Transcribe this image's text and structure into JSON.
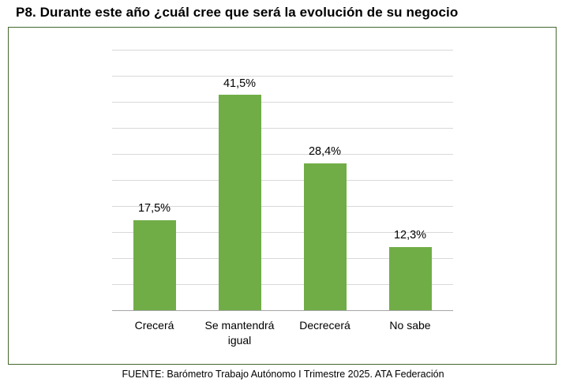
{
  "title": "P8. Durante este año ¿cuál cree que será la evolución de su negocio",
  "source": "FUENTE: Barómetro Trabajo Autónomo I Trimestre 2025. ATA Federación",
  "colors": {
    "bar": "#70AD47",
    "box_border": "#44682d",
    "gridline": "#d9d9d9",
    "axis_line": "#a6a6a6"
  },
  "chart_data": {
    "type": "bar",
    "title": "P8. Durante este año ¿cuál cree que será la evolución de su negocio",
    "categories": [
      "Crecerá",
      "Se mantendrá igual",
      "Decrecerá",
      "No sabe"
    ],
    "values": [
      17.5,
      41.5,
      28.4,
      12.3
    ],
    "value_labels": [
      "17,5%",
      "41,5%",
      "28,4%",
      "12,3%"
    ],
    "xlabel": "",
    "ylabel": "",
    "ylim": [
      0,
      50
    ],
    "grid_step": 5,
    "grid": true,
    "legend": "none",
    "bar_color": "#70AD47"
  }
}
